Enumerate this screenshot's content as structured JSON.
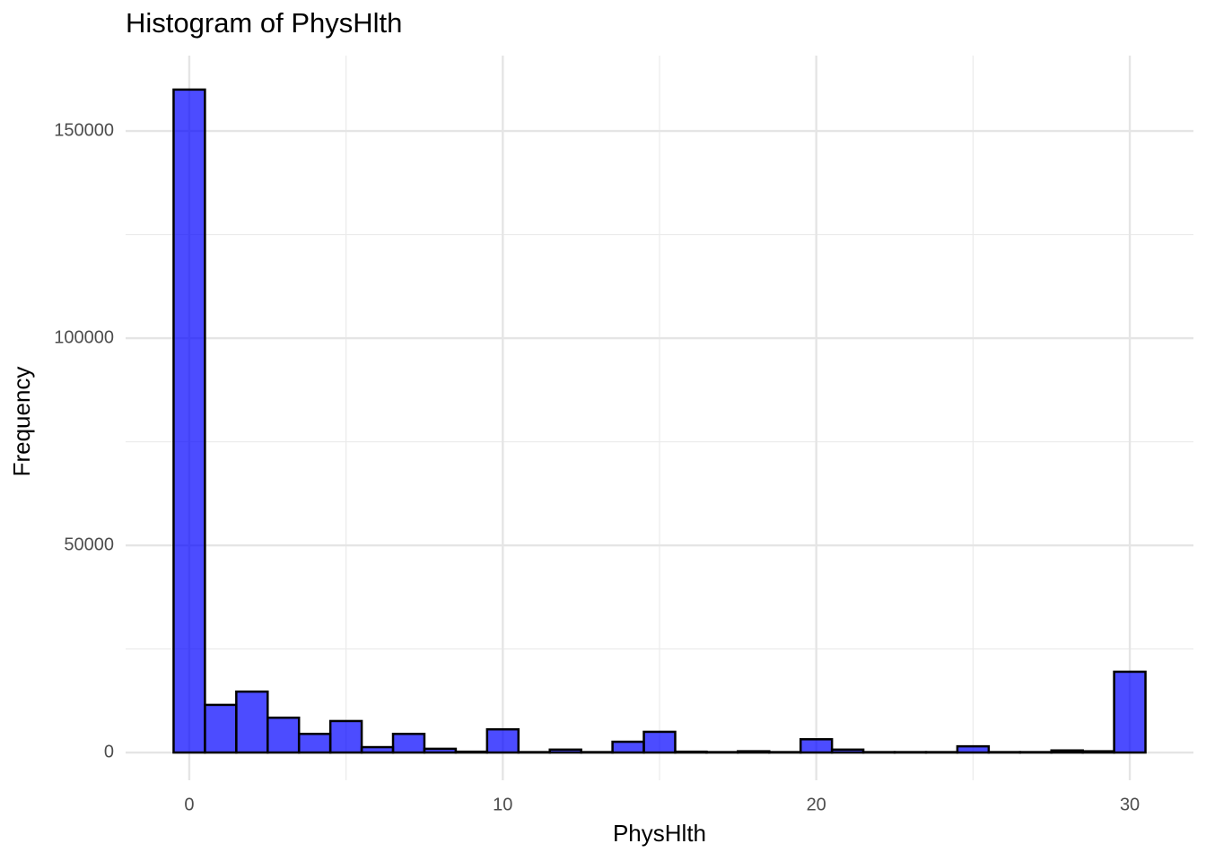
{
  "chart_data": {
    "type": "histogram",
    "title": "Histogram of PhysHlth",
    "x_label": "PhysHlth",
    "y_label": "Frequency",
    "bins": [
      -0.5,
      0.5,
      1.5,
      2.5,
      3.5,
      4.5,
      5.5,
      6.5,
      7.5,
      8.5,
      9.5,
      10.5,
      11.5,
      12.5,
      13.5,
      14.5,
      15.5,
      16.5,
      17.5,
      18.5,
      19.5,
      20.5,
      21.5,
      22.5,
      23.5,
      24.5,
      25.5,
      26.5,
      27.5,
      28.5,
      29.5,
      30.5
    ],
    "values": [
      160000,
      11500,
      14700,
      8400,
      4500,
      7600,
      1300,
      4500,
      900,
      200,
      5600,
      100,
      700,
      100,
      2600,
      5000,
      200,
      100,
      300,
      100,
      3200,
      700,
      100,
      100,
      100,
      1500,
      100,
      100,
      500,
      300,
      19500
    ],
    "color": "#0000ff",
    "opacity": 0.7,
    "edge_color": "#000000",
    "xlim": [
      -2.03,
      32.03
    ],
    "xticks": [
      0,
      10,
      20,
      30
    ],
    "ylim": [
      -6700,
      168200
    ],
    "yticks": [
      0,
      50000,
      100000,
      150000
    ],
    "grid": true
  }
}
